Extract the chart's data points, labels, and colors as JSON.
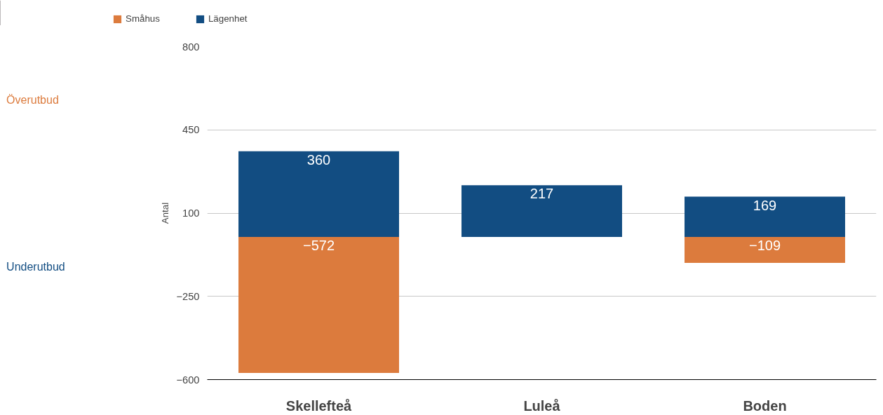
{
  "chart_data": {
    "type": "bar",
    "stacked": true,
    "categories": [
      "Skellefteå",
      "Luleå",
      "Boden"
    ],
    "series": [
      {
        "name": "Småhus",
        "color": "#dc7b3d",
        "values": [
          -572,
          null,
          -109
        ]
      },
      {
        "name": "Lägenhet",
        "color": "#124d82",
        "values": [
          360,
          217,
          169
        ]
      }
    ],
    "ylabel": "Antal",
    "ylim": [
      -600,
      800
    ],
    "yticks": [
      -600,
      -250,
      100,
      450,
      800
    ],
    "grid": "y",
    "legend": "top left",
    "data_labels": true,
    "annotations": [
      "Överutbud",
      "Underutbud"
    ]
  }
}
